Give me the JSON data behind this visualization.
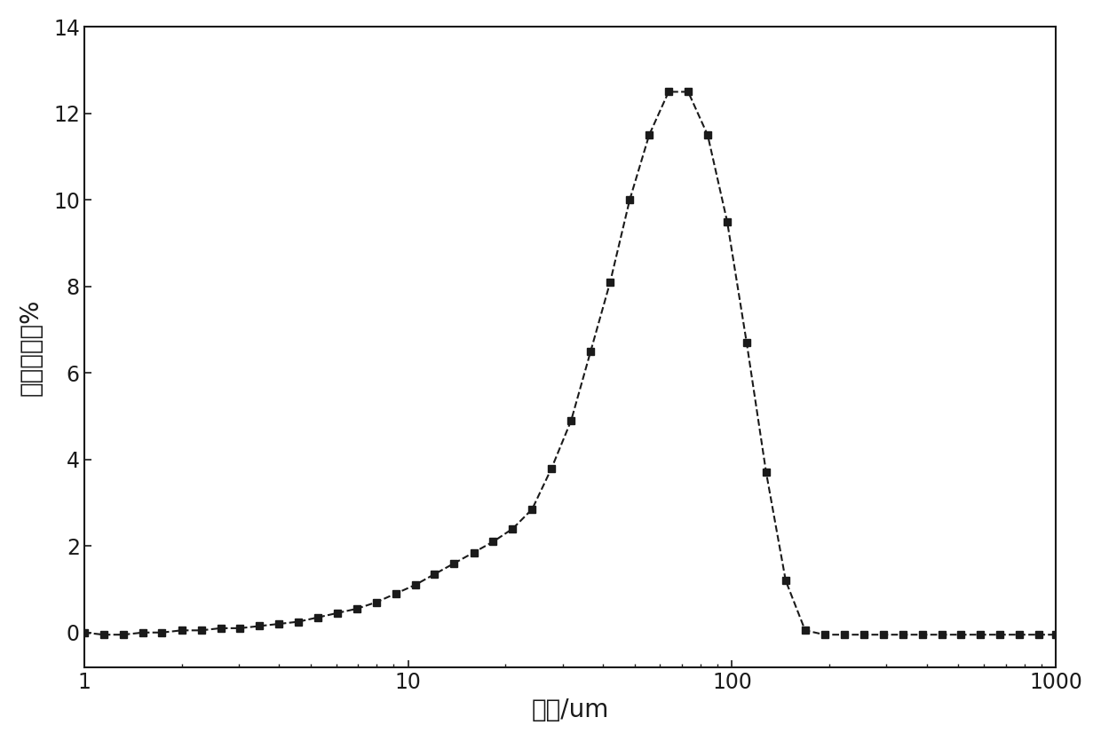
{
  "x": [
    1.0,
    1.15,
    1.32,
    1.52,
    1.74,
    2.0,
    2.3,
    2.64,
    3.03,
    3.48,
    4.0,
    4.59,
    5.27,
    6.05,
    6.95,
    7.98,
    9.16,
    10.52,
    12.08,
    13.88,
    15.95,
    18.31,
    21.04,
    24.16,
    27.75,
    31.88,
    36.62,
    42.07,
    48.33,
    55.5,
    63.74,
    73.24,
    84.13,
    96.65,
    111.0,
    127.5,
    146.5,
    168.2,
    193.2,
    221.9,
    254.9,
    292.8,
    336.3,
    386.4,
    443.8,
    509.8,
    585.7,
    672.9,
    773.0,
    888.0,
    1000.0
  ],
  "y": [
    0.0,
    -0.05,
    -0.05,
    0.0,
    0.0,
    0.05,
    0.05,
    0.1,
    0.1,
    0.15,
    0.2,
    0.25,
    0.35,
    0.45,
    0.55,
    0.7,
    0.9,
    1.1,
    1.35,
    1.6,
    1.85,
    2.1,
    2.4,
    2.85,
    3.8,
    4.9,
    6.5,
    8.1,
    10.0,
    11.5,
    12.5,
    12.5,
    11.5,
    9.5,
    6.7,
    3.7,
    1.2,
    0.05,
    -0.05,
    -0.05,
    -0.05,
    -0.05,
    -0.05,
    -0.05,
    -0.05,
    -0.05,
    -0.05,
    -0.05,
    -0.05,
    -0.05,
    -0.05
  ],
  "xlabel": "粒径/um",
  "ylabel": "体积百分比%",
  "xlim": [
    1,
    1000
  ],
  "ylim": [
    -0.8,
    14
  ],
  "yticks": [
    0,
    2,
    4,
    6,
    8,
    10,
    12,
    14
  ],
  "xticks": [
    1,
    10,
    100,
    1000
  ],
  "line_color": "#1a1a1a",
  "marker": "s",
  "marker_size": 6,
  "line_style": "--",
  "line_width": 1.5,
  "background_color": "#ffffff",
  "axis_color": "#1a1a1a",
  "font_size_label": 20,
  "font_size_tick": 17
}
